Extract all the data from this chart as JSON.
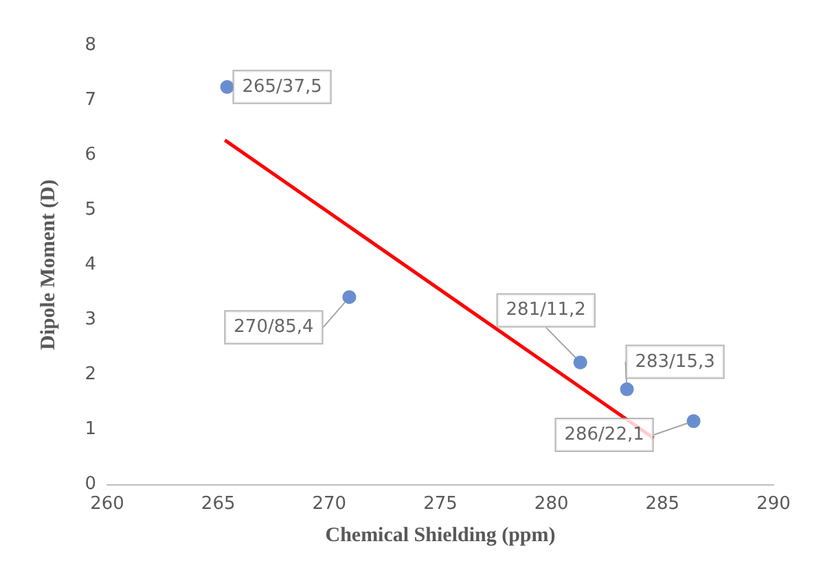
{
  "chart_data": {
    "type": "scatter",
    "xlabel": "Chemical Shielding (ppm)",
    "ylabel": "Dipole Moment (D)",
    "xlim": [
      260,
      290
    ],
    "xticks": [
      260,
      265,
      270,
      275,
      280,
      285,
      290
    ],
    "ylim": [
      0,
      8
    ],
    "yticks": [
      0,
      1,
      2,
      3,
      4,
      5,
      6,
      7,
      8
    ],
    "grid": false,
    "marker": "circle",
    "series": [
      {
        "color": "#4472c4",
        "x": [
          265.4,
          270.9,
          281.3,
          283.4,
          286.4
        ],
        "values": [
          7.24,
          3.41,
          2.22,
          1.73,
          1.15
        ],
        "value_labels": [
          "265/37,5",
          "270/85,4",
          "281/11,2",
          "283/15,3",
          "286/22,1"
        ]
      },
      {
        "type": "line",
        "color": "#ff0000",
        "x": [
          265.3,
          284.6
        ],
        "values": [
          6.27,
          0.84
        ],
        "line_style": "solid",
        "marker": "none"
      }
    ]
  }
}
